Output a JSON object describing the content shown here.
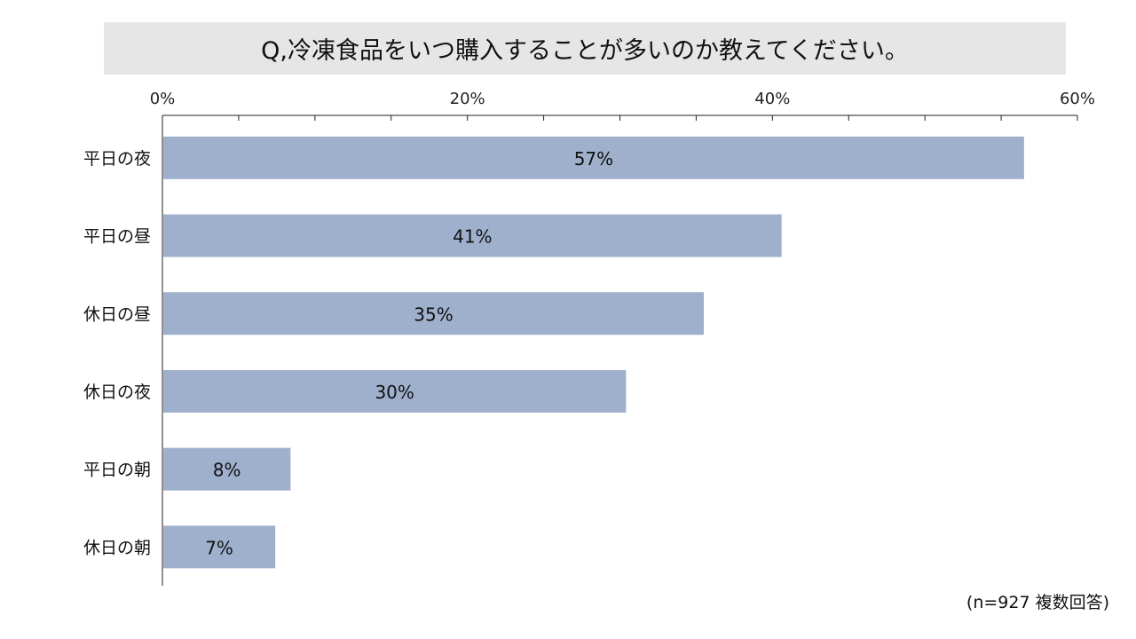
{
  "chart_data": {
    "type": "bar",
    "orientation": "horizontal",
    "title": "Q,冷凍食品をいつ購入することが多いのか教えてください。",
    "categories": [
      "平日の夜",
      "平日の昼",
      "休日の昼",
      "休日の夜",
      "平日の朝",
      "休日の朝"
    ],
    "values": [
      56.5,
      40.6,
      35.5,
      30.4,
      8.4,
      7.4
    ],
    "data_labels": [
      "57%",
      "41%",
      "35%",
      "30%",
      "8%",
      "7%"
    ],
    "xlim": [
      0,
      60
    ],
    "x_ticks": [
      0,
      20,
      40,
      60
    ],
    "x_tick_labels": [
      "0%",
      "20%",
      "40%",
      "60%"
    ],
    "minor_ticks": [
      5,
      10,
      15,
      25,
      30,
      35,
      45,
      50,
      55
    ],
    "axis_position": "top",
    "grid": false,
    "bar_color": "#9eb0cc",
    "note": "(n=927 複数回答)"
  }
}
